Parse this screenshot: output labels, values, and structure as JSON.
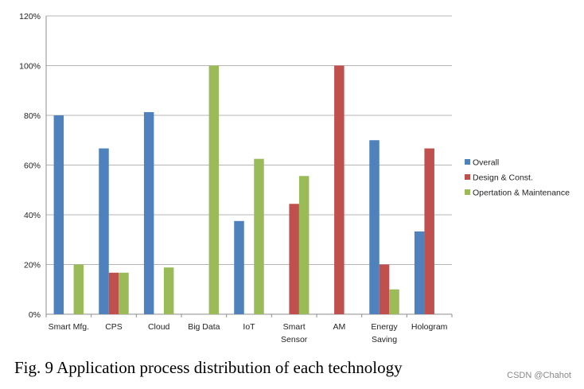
{
  "chart_data": {
    "type": "bar",
    "title": "",
    "xlabel": "",
    "ylabel": "",
    "ylim": [
      0,
      120
    ],
    "ytick_values": [
      0,
      20,
      40,
      60,
      80,
      100,
      120
    ],
    "ytick_labels": [
      "0%",
      "20%",
      "40%",
      "60%",
      "80%",
      "100%",
      "120%"
    ],
    "categories": [
      [
        "Smart Mfg."
      ],
      [
        "CPS"
      ],
      [
        "Cloud"
      ],
      [
        "Big Data"
      ],
      [
        "IoT"
      ],
      [
        "Smart",
        "Sensor"
      ],
      [
        "AM"
      ],
      [
        "Energy",
        "Saving"
      ],
      [
        "Hologram"
      ]
    ],
    "series": [
      {
        "name": "Overall",
        "color": "#4f81bd",
        "values": [
          80,
          66.7,
          81.3,
          0,
          37.5,
          0,
          0,
          70,
          33.3
        ]
      },
      {
        "name": "Design & Const.",
        "color": "#c0504d",
        "values": [
          0,
          16.7,
          0,
          0,
          0,
          44.4,
          100,
          20,
          66.7
        ]
      },
      {
        "name": "Opertation & Maintenance",
        "color": "#9bbb59",
        "values": [
          20,
          16.7,
          18.8,
          100,
          62.5,
          55.6,
          0,
          10,
          0
        ]
      }
    ],
    "legend_position": "right",
    "grid": true
  },
  "caption": "Fig. 9 Application process distribution of each technology",
  "watermark": "CSDN @Chahot"
}
